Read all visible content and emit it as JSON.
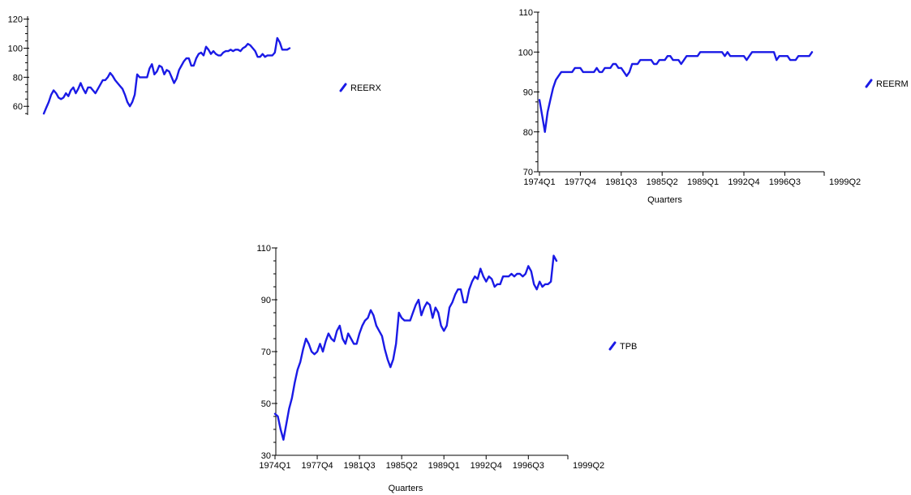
{
  "chart_data": [
    {
      "type": "line",
      "title": "",
      "xlabel": "",
      "ylabel": "",
      "yticks": [
        60,
        80,
        100,
        120
      ],
      "ylim": [
        54,
        122
      ],
      "xticks": [],
      "series": [
        {
          "name": "REERX",
          "x": [
            "1974Q1",
            "1974Q2",
            "1974Q3",
            "1974Q4",
            "1975Q1",
            "1975Q2",
            "1975Q3",
            "1975Q4",
            "1976Q1",
            "1976Q2",
            "1976Q3",
            "1976Q4",
            "1977Q1",
            "1977Q2",
            "1977Q3",
            "1977Q4",
            "1978Q1",
            "1978Q2",
            "1978Q3",
            "1978Q4",
            "1979Q1",
            "1979Q2",
            "1979Q3",
            "1979Q4",
            "1980Q1",
            "1980Q2",
            "1980Q3",
            "1980Q4",
            "1981Q1",
            "1981Q2",
            "1981Q3",
            "1981Q4",
            "1982Q1",
            "1982Q2",
            "1982Q3",
            "1982Q4",
            "1983Q1",
            "1983Q2",
            "1983Q3",
            "1983Q4",
            "1984Q1",
            "1984Q2",
            "1984Q3",
            "1984Q4",
            "1985Q1",
            "1985Q2",
            "1985Q3",
            "1985Q4",
            "1986Q1",
            "1986Q2",
            "1986Q3",
            "1986Q4",
            "1987Q1",
            "1987Q2",
            "1987Q3",
            "1987Q4",
            "1988Q1",
            "1988Q2",
            "1988Q3",
            "1988Q4",
            "1989Q1",
            "1989Q2",
            "1989Q3",
            "1989Q4",
            "1990Q1",
            "1990Q2",
            "1990Q3",
            "1990Q4",
            "1991Q1",
            "1991Q2",
            "1991Q3",
            "1991Q4",
            "1992Q1",
            "1992Q2",
            "1992Q3",
            "1992Q4",
            "1993Q1",
            "1993Q2",
            "1993Q3",
            "1993Q4",
            "1994Q1",
            "1994Q2",
            "1994Q3",
            "1994Q4",
            "1995Q1",
            "1995Q2",
            "1995Q3",
            "1995Q4",
            "1996Q1",
            "1996Q2",
            "1996Q3",
            "1996Q4",
            "1997Q1",
            "1997Q2",
            "1997Q3",
            "1997Q4",
            "1998Q1",
            "1998Q2",
            "1998Q3",
            "1998Q4",
            "1999Q1"
          ],
          "values": [
            55,
            59,
            63,
            68,
            71,
            69,
            66,
            65,
            66,
            69,
            67,
            71,
            73,
            69,
            72,
            76,
            72,
            69,
            73,
            73,
            71,
            69,
            72,
            75,
            78,
            78,
            80,
            83,
            81,
            78,
            76,
            74,
            72,
            68,
            63,
            60,
            63,
            68,
            82,
            80,
            80,
            80,
            80,
            86,
            89,
            82,
            84,
            88,
            87,
            82,
            85,
            84,
            80,
            76,
            79,
            85,
            88,
            91,
            93,
            93,
            88,
            88,
            93,
            96,
            97,
            95,
            101,
            99,
            96,
            98,
            96,
            95,
            95,
            97,
            98,
            98,
            99,
            98,
            99,
            99,
            98,
            100,
            101,
            103,
            102,
            100,
            98,
            94,
            94,
            96,
            94,
            95,
            95,
            95,
            97,
            107,
            104,
            99,
            99,
            99,
            100
          ]
        }
      ]
    },
    {
      "type": "line",
      "title": "",
      "xlabel": "Quarters",
      "ylabel": "",
      "yticks": [
        70,
        80,
        90,
        100,
        110
      ],
      "ylim": [
        70,
        110
      ],
      "xticks": [
        "1974Q1",
        "1977Q4",
        "1981Q3",
        "1985Q2",
        "1989Q1",
        "1992Q4",
        "1996Q3",
        "1999Q2"
      ],
      "series": [
        {
          "name": "REERM",
          "x": [
            "1974Q1",
            "1974Q2",
            "1974Q3",
            "1974Q4",
            "1975Q1",
            "1975Q2",
            "1975Q3",
            "1975Q4",
            "1976Q1",
            "1976Q2",
            "1976Q3",
            "1976Q4",
            "1977Q1",
            "1977Q2",
            "1977Q3",
            "1977Q4",
            "1978Q1",
            "1978Q2",
            "1978Q3",
            "1978Q4",
            "1979Q1",
            "1979Q2",
            "1979Q3",
            "1979Q4",
            "1980Q1",
            "1980Q2",
            "1980Q3",
            "1980Q4",
            "1981Q1",
            "1981Q2",
            "1981Q3",
            "1981Q4",
            "1982Q1",
            "1982Q2",
            "1982Q3",
            "1982Q4",
            "1983Q1",
            "1983Q2",
            "1983Q3",
            "1983Q4",
            "1984Q1",
            "1984Q2",
            "1984Q3",
            "1984Q4",
            "1985Q1",
            "1985Q2",
            "1985Q3",
            "1985Q4",
            "1986Q1",
            "1986Q2",
            "1986Q3",
            "1986Q4",
            "1987Q1",
            "1987Q2",
            "1987Q3",
            "1987Q4",
            "1988Q1",
            "1988Q2",
            "1988Q3",
            "1988Q4",
            "1989Q1",
            "1989Q2",
            "1989Q3",
            "1989Q4",
            "1990Q1",
            "1990Q2",
            "1990Q3",
            "1990Q4",
            "1991Q1",
            "1991Q2",
            "1991Q3",
            "1991Q4",
            "1992Q1",
            "1992Q2",
            "1992Q3",
            "1992Q4",
            "1993Q1",
            "1993Q2",
            "1993Q3",
            "1993Q4",
            "1994Q1",
            "1994Q2",
            "1994Q3",
            "1994Q4",
            "1995Q1",
            "1995Q2",
            "1995Q3",
            "1995Q4",
            "1996Q1",
            "1996Q2",
            "1996Q3",
            "1996Q4",
            "1997Q1",
            "1997Q2",
            "1997Q3",
            "1997Q4",
            "1998Q1",
            "1998Q2",
            "1998Q3",
            "1998Q4",
            "1999Q1"
          ],
          "values": [
            88,
            84,
            80,
            85,
            88,
            91,
            93,
            94,
            95,
            95,
            95,
            95,
            95,
            96,
            96,
            96,
            95,
            95,
            95,
            95,
            95,
            96,
            95,
            95,
            96,
            96,
            96,
            97,
            97,
            96,
            96,
            95,
            94,
            95,
            97,
            97,
            97,
            98,
            98,
            98,
            98,
            98,
            97,
            97,
            98,
            98,
            98,
            99,
            99,
            98,
            98,
            98,
            97,
            98,
            99,
            99,
            99,
            99,
            99,
            100,
            100,
            100,
            100,
            100,
            100,
            100,
            100,
            100,
            99,
            100,
            99,
            99,
            99,
            99,
            99,
            99,
            98,
            99,
            100,
            100,
            100,
            100,
            100,
            100,
            100,
            100,
            100,
            98,
            99,
            99,
            99,
            99,
            98,
            98,
            98,
            99,
            99,
            99,
            99,
            99,
            100
          ]
        }
      ]
    },
    {
      "type": "line",
      "title": "",
      "xlabel": "Quarters",
      "ylabel": "",
      "yticks": [
        30,
        50,
        70,
        90,
        110
      ],
      "ylim": [
        30,
        110
      ],
      "xticks": [
        "1974Q1",
        "1977Q4",
        "1981Q3",
        "1985Q2",
        "1989Q1",
        "1992Q4",
        "1996Q3",
        "1999Q2"
      ],
      "series": [
        {
          "name": "TPB",
          "x": [
            "1974Q1",
            "1974Q2",
            "1974Q3",
            "1974Q4",
            "1975Q1",
            "1975Q2",
            "1975Q3",
            "1975Q4",
            "1976Q1",
            "1976Q2",
            "1976Q3",
            "1976Q4",
            "1977Q1",
            "1977Q2",
            "1977Q3",
            "1977Q4",
            "1978Q1",
            "1978Q2",
            "1978Q3",
            "1978Q4",
            "1979Q1",
            "1979Q2",
            "1979Q3",
            "1979Q4",
            "1980Q1",
            "1980Q2",
            "1980Q3",
            "1980Q4",
            "1981Q1",
            "1981Q2",
            "1981Q3",
            "1981Q4",
            "1982Q1",
            "1982Q2",
            "1982Q3",
            "1982Q4",
            "1983Q1",
            "1983Q2",
            "1983Q3",
            "1983Q4",
            "1984Q1",
            "1984Q2",
            "1984Q3",
            "1984Q4",
            "1985Q1",
            "1985Q2",
            "1985Q3",
            "1985Q4",
            "1986Q1",
            "1986Q2",
            "1986Q3",
            "1986Q4",
            "1987Q1",
            "1987Q2",
            "1987Q3",
            "1987Q4",
            "1988Q1",
            "1988Q2",
            "1988Q3",
            "1988Q4",
            "1989Q1",
            "1989Q2",
            "1989Q3",
            "1989Q4",
            "1990Q1",
            "1990Q2",
            "1990Q3",
            "1990Q4",
            "1991Q1",
            "1991Q2",
            "1991Q3",
            "1991Q4",
            "1992Q1",
            "1992Q2",
            "1992Q3",
            "1992Q4",
            "1993Q1",
            "1993Q2",
            "1993Q3",
            "1993Q4",
            "1994Q1",
            "1994Q2",
            "1994Q3",
            "1994Q4",
            "1995Q1",
            "1995Q2",
            "1995Q3",
            "1995Q4",
            "1996Q1",
            "1996Q2",
            "1996Q3",
            "1996Q4",
            "1997Q1",
            "1997Q2",
            "1997Q3",
            "1997Q4",
            "1998Q1",
            "1998Q2",
            "1998Q3",
            "1998Q4",
            "1999Q1"
          ],
          "values": [
            46,
            45,
            40,
            36,
            42,
            48,
            52,
            58,
            63,
            66,
            71,
            75,
            73,
            70,
            69,
            70,
            73,
            70,
            74,
            77,
            75,
            74,
            78,
            80,
            75,
            73,
            77,
            75,
            73,
            73,
            77,
            80,
            82,
            83,
            86,
            84,
            80,
            78,
            76,
            71,
            67,
            64,
            67,
            73,
            85,
            83,
            82,
            82,
            82,
            85,
            88,
            90,
            84,
            87,
            89,
            88,
            83,
            87,
            85,
            80,
            78,
            80,
            87,
            89,
            92,
            94,
            94,
            89,
            89,
            94,
            97,
            99,
            98,
            102,
            99,
            97,
            99,
            98,
            95,
            96,
            96,
            99,
            99,
            99,
            100,
            99,
            100,
            100,
            99,
            100,
            103,
            101,
            96,
            94,
            97,
            95,
            96,
            96,
            97,
            107,
            105
          ]
        }
      ]
    }
  ]
}
